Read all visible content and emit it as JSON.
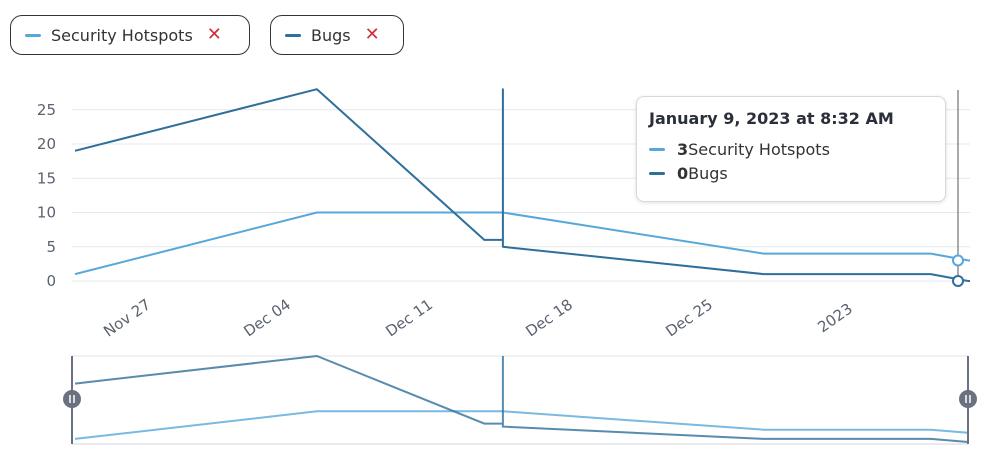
{
  "legend": [
    {
      "label": "Security Hotspots",
      "color": "#58a7db",
      "close_icon": "close-icon"
    },
    {
      "label": "Bugs",
      "color": "#2e6f9b",
      "close_icon": "close-icon"
    }
  ],
  "tooltip": {
    "title": "January 9, 2023 at 8:32 AM",
    "rows": [
      {
        "value": "3",
        "label": "Security Hotspots"
      },
      {
        "value": "0",
        "label": "Bugs"
      }
    ]
  },
  "chart_data": {
    "type": "line",
    "x_labels": [
      "Nov 27",
      "Dec 04",
      "Dec 11",
      "Dec 18",
      "Dec 25",
      "2023"
    ],
    "y_ticks": [
      0,
      5,
      10,
      15,
      20,
      25
    ],
    "ylim": [
      0,
      28
    ],
    "grid": true,
    "series": [
      {
        "name": "Security Hotspots",
        "color": "#58a7db",
        "points": [
          {
            "x": "2022-11-22",
            "y": 1
          },
          {
            "x": "2022-12-05",
            "y": 10
          },
          {
            "x": "2022-12-15",
            "y": 10
          },
          {
            "x": "2022-12-29",
            "y": 4
          },
          {
            "x": "2023-01-07",
            "y": 4
          },
          {
            "x": "2023-01-09",
            "y": 3
          }
        ]
      },
      {
        "name": "Bugs",
        "color": "#2e6f9b",
        "points": [
          {
            "x": "2022-11-22",
            "y": 19
          },
          {
            "x": "2022-12-05",
            "y": 28
          },
          {
            "x": "2022-12-14",
            "y": 6
          },
          {
            "x": "2022-12-15",
            "y": 6
          },
          {
            "x": "2022-12-15",
            "y": 28
          },
          {
            "x": "2022-12-15",
            "y": 5
          },
          {
            "x": "2022-12-29",
            "y": 1
          },
          {
            "x": "2023-01-07",
            "y": 1
          },
          {
            "x": "2023-01-09",
            "y": 0
          }
        ]
      }
    ]
  }
}
